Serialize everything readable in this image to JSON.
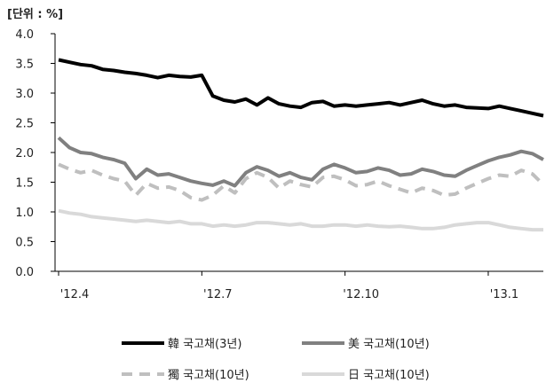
{
  "chart_data": {
    "type": "line",
    "unit_label": "[단위 : %]",
    "ylim": [
      0.0,
      4.0
    ],
    "y_ticks": [
      "0.0",
      "0.5",
      "1.0",
      "1.5",
      "2.0",
      "2.5",
      "3.0",
      "3.5",
      "4.0"
    ],
    "x_tick_labels": [
      "'12.4",
      "'12.7",
      "'12.10",
      "'13.1"
    ],
    "x_tick_index": [
      0,
      13,
      26,
      39
    ],
    "grid": false,
    "legend_position": "bottom",
    "series": [
      {
        "name": "韓 국고채(3년)",
        "color": "#000000",
        "dash": "",
        "width": 4,
        "values": [
          3.56,
          3.52,
          3.48,
          3.46,
          3.4,
          3.38,
          3.35,
          3.33,
          3.3,
          3.26,
          3.3,
          3.28,
          3.27,
          3.3,
          2.95,
          2.88,
          2.85,
          2.9,
          2.8,
          2.92,
          2.82,
          2.78,
          2.76,
          2.84,
          2.86,
          2.78,
          2.8,
          2.78,
          2.8,
          2.82,
          2.84,
          2.8,
          2.84,
          2.88,
          2.82,
          2.78,
          2.8,
          2.76,
          2.75,
          2.74,
          2.78,
          2.74,
          2.7,
          2.66,
          2.62
        ]
      },
      {
        "name": "美 국고채(10년)",
        "color": "#808080",
        "dash": "",
        "width": 4,
        "values": [
          2.25,
          2.08,
          2.0,
          1.98,
          1.92,
          1.88,
          1.82,
          1.56,
          1.72,
          1.62,
          1.64,
          1.58,
          1.52,
          1.48,
          1.45,
          1.52,
          1.44,
          1.66,
          1.76,
          1.7,
          1.6,
          1.66,
          1.58,
          1.54,
          1.72,
          1.8,
          1.74,
          1.66,
          1.68,
          1.74,
          1.7,
          1.62,
          1.64,
          1.72,
          1.68,
          1.62,
          1.6,
          1.7,
          1.78,
          1.86,
          1.92,
          1.96,
          2.02,
          1.98,
          1.88
        ]
      },
      {
        "name": "獨 국고채(10년)",
        "color": "#bfbfbf",
        "dash": "12,8",
        "width": 4,
        "values": [
          1.8,
          1.72,
          1.66,
          1.7,
          1.62,
          1.56,
          1.52,
          1.28,
          1.48,
          1.4,
          1.42,
          1.36,
          1.24,
          1.2,
          1.28,
          1.44,
          1.32,
          1.56,
          1.66,
          1.58,
          1.4,
          1.52,
          1.46,
          1.42,
          1.58,
          1.6,
          1.54,
          1.44,
          1.46,
          1.52,
          1.44,
          1.38,
          1.32,
          1.4,
          1.36,
          1.28,
          1.3,
          1.4,
          1.48,
          1.56,
          1.62,
          1.6,
          1.7,
          1.64,
          1.46
        ]
      },
      {
        "name": "日 국고채(10년)",
        "color": "#d9d9d9",
        "dash": "",
        "width": 4,
        "values": [
          1.02,
          0.98,
          0.96,
          0.92,
          0.9,
          0.88,
          0.86,
          0.84,
          0.86,
          0.84,
          0.82,
          0.84,
          0.8,
          0.8,
          0.76,
          0.78,
          0.76,
          0.78,
          0.82,
          0.82,
          0.8,
          0.78,
          0.8,
          0.76,
          0.76,
          0.78,
          0.78,
          0.76,
          0.78,
          0.76,
          0.75,
          0.76,
          0.74,
          0.72,
          0.72,
          0.74,
          0.78,
          0.8,
          0.82,
          0.82,
          0.78,
          0.74,
          0.72,
          0.7,
          0.7
        ]
      }
    ]
  }
}
